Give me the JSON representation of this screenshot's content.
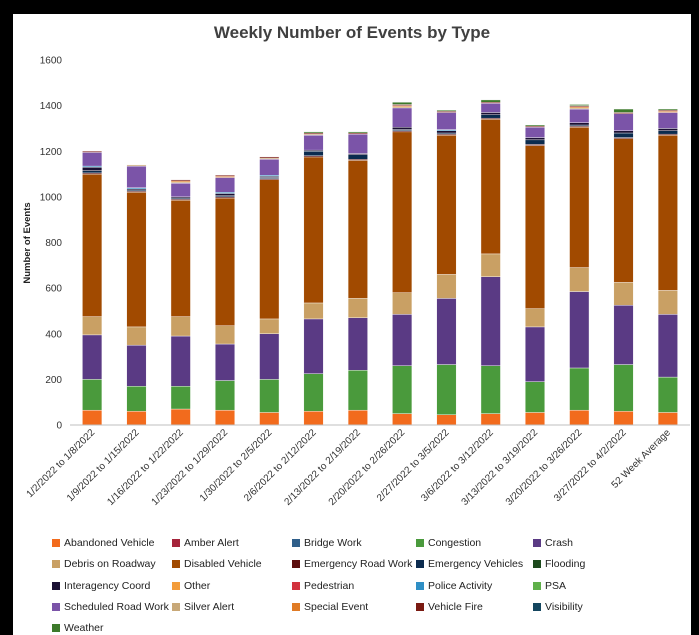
{
  "chart_data": {
    "type": "bar",
    "stacked": true,
    "title": "Weekly Number of Events by Type",
    "xlabel": "",
    "ylabel": "Number of Events",
    "ylim": [
      0,
      1600
    ],
    "yticks": [
      0,
      200,
      400,
      600,
      800,
      1000,
      1200,
      1400,
      1600
    ],
    "grid": false,
    "legend_position": "bottom",
    "categories": [
      "1/2/2022 to 1/8/2022",
      "1/9/2022 to 1/15/2022",
      "1/16/2022 to 1/22/2022",
      "1/23/2022 to 1/29/2022",
      "1/30/2022 to 2/5/2022",
      "2/6/2022 to 2/12/2022",
      "2/13/2022 to 2/19/2022",
      "2/20/2022 to 2/26/2022",
      "2/27/2022 to 3/5/2022",
      "3/6/2022 to 3/12/2022",
      "3/13/2022 to 3/19/2022",
      "3/20/2022 to 3/26/2022",
      "3/27/2022 to 4/2/2022",
      "52 Week Average"
    ],
    "series": [
      {
        "name": "Abandoned Vehicle",
        "color": "#F26B1D",
        "values": [
          65,
          60,
          70,
          65,
          55,
          60,
          65,
          50,
          45,
          50,
          55,
          65,
          60,
          55
        ]
      },
      {
        "name": "Amber Alert",
        "color": "#A5243B",
        "values": [
          0,
          0,
          0,
          0,
          0,
          0,
          0,
          0,
          0,
          0,
          0,
          0,
          0,
          0
        ]
      },
      {
        "name": "Bridge Work",
        "color": "#2F5F8A",
        "values": [
          0,
          0,
          0,
          0,
          0,
          0,
          0,
          0,
          0,
          0,
          0,
          0,
          0,
          0
        ]
      },
      {
        "name": "Congestion",
        "color": "#4A9A3C",
        "values": [
          135,
          110,
          100,
          130,
          145,
          165,
          175,
          210,
          220,
          210,
          135,
          185,
          205,
          155
        ]
      },
      {
        "name": "Crash",
        "color": "#5A3A84",
        "values": [
          195,
          180,
          220,
          160,
          200,
          240,
          230,
          225,
          290,
          390,
          240,
          335,
          260,
          275
        ]
      },
      {
        "name": "Debris on Roadway",
        "color": "#C9A064",
        "values": [
          80,
          80,
          85,
          80,
          65,
          70,
          85,
          95,
          105,
          100,
          80,
          105,
          100,
          105
        ]
      },
      {
        "name": "Disabled Vehicle",
        "color": "#A14A00",
        "values": [
          625,
          590,
          510,
          560,
          610,
          640,
          605,
          705,
          610,
          590,
          715,
          615,
          630,
          680
        ]
      },
      {
        "name": "Emergency Road Work",
        "color": "#5C0E0E",
        "values": [
          5,
          5,
          5,
          5,
          5,
          5,
          5,
          5,
          5,
          5,
          5,
          5,
          5,
          5
        ]
      },
      {
        "name": "Emergency Vehicles",
        "color": "#0B2B4E",
        "values": [
          10,
          5,
          5,
          5,
          5,
          20,
          20,
          5,
          5,
          15,
          20,
          5,
          20,
          15
        ]
      },
      {
        "name": "Flooding",
        "color": "#1D4A1D",
        "values": [
          0,
          0,
          0,
          0,
          0,
          0,
          0,
          0,
          0,
          0,
          0,
          0,
          0,
          0
        ]
      },
      {
        "name": "Interagency Coord",
        "color": "#1A1033",
        "values": [
          15,
          5,
          5,
          10,
          5,
          5,
          5,
          10,
          10,
          10,
          10,
          10,
          10,
          10
        ]
      },
      {
        "name": "Other",
        "color": "#F39C3A",
        "values": [
          0,
          0,
          0,
          0,
          0,
          0,
          0,
          0,
          0,
          0,
          0,
          0,
          0,
          0
        ]
      },
      {
        "name": "Pedestrian",
        "color": "#D2323E",
        "values": [
          0,
          0,
          0,
          0,
          0,
          0,
          0,
          0,
          0,
          0,
          0,
          0,
          0,
          0
        ]
      },
      {
        "name": "Police Activity",
        "color": "#2F8FC5",
        "values": [
          5,
          5,
          0,
          5,
          5,
          0,
          0,
          0,
          5,
          0,
          0,
          0,
          0,
          0
        ]
      },
      {
        "name": "PSA",
        "color": "#5FB04A",
        "values": [
          0,
          0,
          0,
          0,
          0,
          0,
          0,
          0,
          0,
          0,
          0,
          0,
          0,
          0
        ]
      },
      {
        "name": "Scheduled Road Work",
        "color": "#7B54A8",
        "values": [
          60,
          95,
          60,
          65,
          70,
          65,
          85,
          85,
          75,
          40,
          45,
          60,
          75,
          70
        ]
      },
      {
        "name": "Silver Alert",
        "color": "#C8A878",
        "values": [
          0,
          5,
          5,
          0,
          5,
          5,
          0,
          5,
          0,
          0,
          0,
          5,
          0,
          0
        ]
      },
      {
        "name": "Special Event",
        "color": "#E07B25",
        "values": [
          0,
          0,
          5,
          5,
          0,
          0,
          0,
          5,
          0,
          0,
          0,
          5,
          0,
          5
        ]
      },
      {
        "name": "Vehicle Fire",
        "color": "#7A1A12",
        "values": [
          5,
          0,
          5,
          5,
          5,
          5,
          5,
          5,
          5,
          5,
          5,
          5,
          5,
          5
        ]
      },
      {
        "name": "Visibility",
        "color": "#14465F",
        "values": [
          0,
          0,
          0,
          0,
          0,
          0,
          0,
          0,
          0,
          0,
          0,
          0,
          0,
          0
        ]
      },
      {
        "name": "Weather",
        "color": "#3D7A2B",
        "values": [
          0,
          0,
          0,
          0,
          0,
          5,
          5,
          10,
          5,
          10,
          5,
          5,
          15,
          5
        ]
      }
    ]
  }
}
